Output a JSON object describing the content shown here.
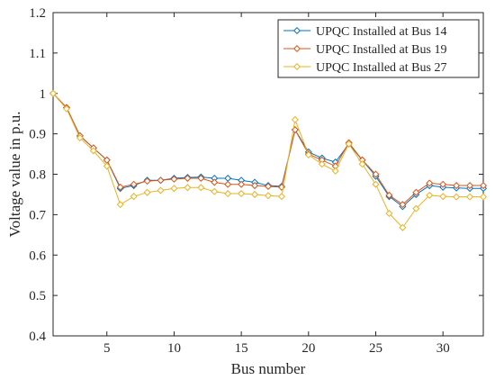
{
  "chart_data": {
    "type": "line",
    "xlabel": "Bus number",
    "ylabel": "Voltage value in p.u.",
    "xlim": [
      1,
      33
    ],
    "ylim": [
      0.4,
      1.2
    ],
    "xticks": [
      5,
      10,
      15,
      20,
      25,
      30
    ],
    "yticks": [
      0.4,
      0.5,
      0.6,
      0.7,
      0.8,
      0.9,
      1,
      1.1,
      1.2
    ],
    "ytick_labels": [
      "0.4",
      "0.5",
      "0.6",
      "0.7",
      "0.8",
      "0.9",
      "1",
      "1.1",
      "1.2"
    ],
    "grid": false,
    "legend_position": "top-right",
    "marker": "diamond",
    "x": [
      1,
      2,
      3,
      4,
      5,
      6,
      7,
      8,
      9,
      10,
      11,
      12,
      13,
      14,
      15,
      16,
      17,
      18,
      19,
      20,
      21,
      22,
      23,
      24,
      25,
      26,
      27,
      28,
      29,
      30,
      31,
      32,
      33
    ],
    "series": [
      {
        "name": "UPQC Installed at Bus 14",
        "color": "#0072BD",
        "values": [
          1.0,
          0.965,
          0.895,
          0.865,
          0.835,
          0.765,
          0.772,
          0.785,
          0.785,
          0.79,
          0.792,
          0.793,
          0.79,
          0.79,
          0.785,
          0.78,
          0.772,
          0.77,
          0.91,
          0.855,
          0.84,
          0.83,
          0.875,
          0.835,
          0.795,
          0.745,
          0.72,
          0.75,
          0.772,
          0.768,
          0.766,
          0.765,
          0.765
        ]
      },
      {
        "name": "UPQC Installed at Bus 19",
        "color": "#D95319",
        "values": [
          1.0,
          0.965,
          0.895,
          0.865,
          0.835,
          0.768,
          0.775,
          0.783,
          0.785,
          0.788,
          0.79,
          0.79,
          0.78,
          0.775,
          0.775,
          0.772,
          0.77,
          0.768,
          0.91,
          0.85,
          0.835,
          0.82,
          0.878,
          0.835,
          0.8,
          0.748,
          0.725,
          0.755,
          0.778,
          0.775,
          0.772,
          0.772,
          0.772
        ]
      },
      {
        "name": "UPQC Installed at Bus 27",
        "color": "#EDB120",
        "values": [
          1.0,
          0.962,
          0.89,
          0.858,
          0.82,
          0.725,
          0.745,
          0.755,
          0.76,
          0.765,
          0.767,
          0.767,
          0.757,
          0.752,
          0.752,
          0.75,
          0.747,
          0.745,
          0.935,
          0.848,
          0.825,
          0.808,
          0.875,
          0.825,
          0.775,
          0.703,
          0.668,
          0.715,
          0.748,
          0.745,
          0.744,
          0.744,
          0.744
        ]
      }
    ]
  }
}
